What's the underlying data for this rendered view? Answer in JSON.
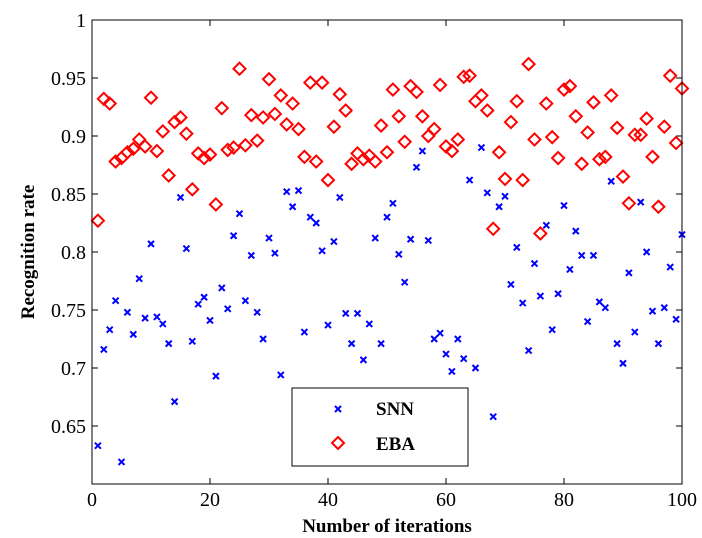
{
  "chart_data": {
    "type": "scatter",
    "xlabel": "Number of iterations",
    "ylabel": "Recognition rate",
    "xlim": [
      0,
      100
    ],
    "ylim": [
      0.6,
      1.0
    ],
    "xticks": [
      0,
      20,
      40,
      60,
      80,
      100
    ],
    "xtick_labels": [
      "0",
      "20",
      "40",
      "60",
      "80",
      "100"
    ],
    "yticks": [
      0.65,
      0.7,
      0.75,
      0.8,
      0.85,
      0.9,
      0.95,
      1.0
    ],
    "ytick_labels": [
      "0.65",
      "0.7",
      "0.75",
      "0.8",
      "0.85",
      "0.9",
      "0.95",
      "1"
    ],
    "grid": false,
    "legend_position": "bottom-center",
    "series": [
      {
        "name": "SNN",
        "marker": "x",
        "color": "#0000ff",
        "x": [
          1,
          2,
          3,
          4,
          5,
          6,
          7,
          8,
          9,
          10,
          11,
          12,
          13,
          14,
          15,
          16,
          17,
          18,
          19,
          20,
          21,
          22,
          23,
          24,
          25,
          26,
          27,
          28,
          29,
          30,
          31,
          32,
          33,
          34,
          35,
          36,
          37,
          38,
          39,
          40,
          41,
          42,
          43,
          44,
          45,
          46,
          47,
          48,
          49,
          50,
          51,
          52,
          53,
          54,
          55,
          56,
          57,
          58,
          59,
          60,
          61,
          62,
          63,
          64,
          65,
          66,
          67,
          68,
          69,
          70,
          71,
          72,
          73,
          74,
          75,
          76,
          77,
          78,
          79,
          80,
          81,
          82,
          83,
          84,
          85,
          86,
          87,
          88,
          89,
          90,
          91,
          92,
          93,
          94,
          95,
          96,
          97,
          98,
          99,
          100
        ],
        "y": [
          0.633,
          0.716,
          0.733,
          0.758,
          0.619,
          0.748,
          0.729,
          0.777,
          0.743,
          0.807,
          0.744,
          0.738,
          0.721,
          0.671,
          0.847,
          0.803,
          0.723,
          0.755,
          0.761,
          0.741,
          0.693,
          0.769,
          0.751,
          0.814,
          0.833,
          0.758,
          0.797,
          0.748,
          0.725,
          0.812,
          0.799,
          0.694,
          0.852,
          0.839,
          0.853,
          0.731,
          0.83,
          0.825,
          0.801,
          0.737,
          0.809,
          0.847,
          0.747,
          0.721,
          0.747,
          0.707,
          0.738,
          0.812,
          0.721,
          0.83,
          0.842,
          0.798,
          0.774,
          0.811,
          0.873,
          0.887,
          0.81,
          0.725,
          0.73,
          0.712,
          0.697,
          0.725,
          0.708,
          0.862,
          0.7,
          0.89,
          0.851,
          0.658,
          0.839,
          0.848,
          0.772,
          0.804,
          0.756,
          0.715,
          0.79,
          0.762,
          0.823,
          0.733,
          0.764,
          0.84,
          0.785,
          0.818,
          0.797,
          0.74,
          0.797,
          0.757,
          0.752,
          0.861,
          0.721,
          0.704,
          0.782,
          0.731,
          0.843,
          0.8,
          0.749,
          0.721,
          0.752,
          0.787,
          0.742,
          0.815
        ]
      },
      {
        "name": "EBA",
        "marker": "diamond",
        "color": "#ff0000",
        "x": [
          1,
          2,
          3,
          4,
          5,
          6,
          7,
          8,
          9,
          10,
          11,
          12,
          13,
          14,
          15,
          16,
          17,
          18,
          19,
          20,
          21,
          22,
          23,
          24,
          25,
          26,
          27,
          28,
          29,
          30,
          31,
          32,
          33,
          34,
          35,
          36,
          37,
          38,
          39,
          40,
          41,
          42,
          43,
          44,
          45,
          46,
          47,
          48,
          49,
          50,
          51,
          52,
          53,
          54,
          55,
          56,
          57,
          58,
          59,
          60,
          61,
          62,
          63,
          64,
          65,
          66,
          67,
          68,
          69,
          70,
          71,
          72,
          73,
          74,
          75,
          76,
          77,
          78,
          79,
          80,
          81,
          82,
          83,
          84,
          85,
          86,
          87,
          88,
          89,
          90,
          91,
          92,
          93,
          94,
          95,
          96,
          97,
          98,
          99,
          100
        ],
        "y": [
          0.827,
          0.932,
          0.928,
          0.878,
          0.881,
          0.886,
          0.889,
          0.897,
          0.891,
          0.933,
          0.887,
          0.904,
          0.866,
          0.912,
          0.916,
          0.902,
          0.854,
          0.885,
          0.881,
          0.884,
          0.841,
          0.924,
          0.888,
          0.89,
          0.958,
          0.892,
          0.918,
          0.896,
          0.916,
          0.949,
          0.919,
          0.935,
          0.91,
          0.928,
          0.906,
          0.882,
          0.946,
          0.878,
          0.946,
          0.862,
          0.908,
          0.936,
          0.922,
          0.876,
          0.885,
          0.88,
          0.883,
          0.878,
          0.909,
          0.886,
          0.94,
          0.917,
          0.895,
          0.943,
          0.938,
          0.917,
          0.9,
          0.906,
          0.944,
          0.891,
          0.887,
          0.897,
          0.951,
          0.952,
          0.93,
          0.935,
          0.922,
          0.82,
          0.886,
          0.863,
          0.912,
          0.93,
          0.862,
          0.962,
          0.897,
          0.816,
          0.928,
          0.899,
          0.881,
          0.94,
          0.943,
          0.917,
          0.876,
          0.903,
          0.929,
          0.88,
          0.882,
          0.935,
          0.907,
          0.865,
          0.842,
          0.901,
          0.901,
          0.915,
          0.882,
          0.839,
          0.908,
          0.952,
          0.894,
          0.941
        ]
      }
    ]
  }
}
